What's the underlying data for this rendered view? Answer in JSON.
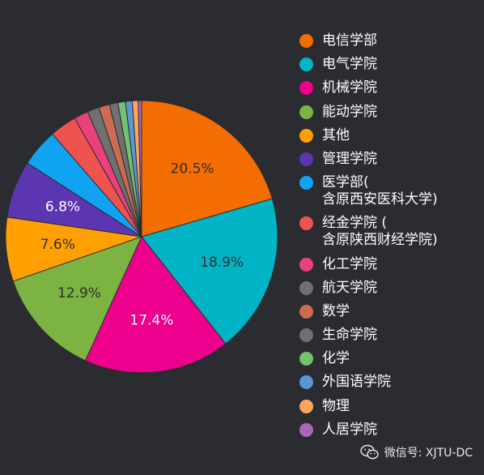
{
  "chart_data": {
    "type": "pie",
    "series": [
      {
        "name": "电信学部",
        "value": 20.5,
        "label": "20.5%",
        "color": "#f46d00"
      },
      {
        "name": "电气学院",
        "value": 18.9,
        "label": "18.9%",
        "color": "#00b4c6"
      },
      {
        "name": "机械学院",
        "value": 17.4,
        "label": "17.4%",
        "color": "#ec008c"
      },
      {
        "name": "能动学院",
        "value": 12.9,
        "label": "12.9%",
        "color": "#7cb342"
      },
      {
        "name": "其他",
        "value": 7.6,
        "label": "7.6%",
        "color": "#ffa000"
      },
      {
        "name": "管理学院",
        "value": 6.8,
        "label": "6.8%",
        "color": "#5c35b0"
      },
      {
        "name": "医学部(",
        "name2": "含原西安医科大学)",
        "value": 4.5,
        "label": "",
        "color": "#10a3f2"
      },
      {
        "name": "经金学院 (",
        "name2": "含原陕西财经学院)",
        "value": 3.2,
        "label": "",
        "color": "#ef5350"
      },
      {
        "name": "化工学院",
        "value": 1.7,
        "label": "",
        "color": "#ea407b"
      },
      {
        "name": "航天学院",
        "value": 1.4,
        "label": "",
        "color": "#707070"
      },
      {
        "name": "数学",
        "value": 1.3,
        "label": "",
        "color": "#cd6b51"
      },
      {
        "name": "生命学院",
        "value": 1.0,
        "label": "",
        "color": "#707070"
      },
      {
        "name": "化学",
        "value": 0.9,
        "label": "",
        "color": "#72c26e"
      },
      {
        "name": "外国语学院",
        "value": 0.8,
        "label": "",
        "color": "#5b97d6"
      },
      {
        "name": "物理",
        "value": 0.7,
        "label": "",
        "color": "#ffa45a"
      },
      {
        "name": "人居学院",
        "value": 0.4,
        "label": "",
        "color": "#a868b8"
      }
    ]
  },
  "watermark": {
    "text": "微信号: XJTU-DC"
  }
}
